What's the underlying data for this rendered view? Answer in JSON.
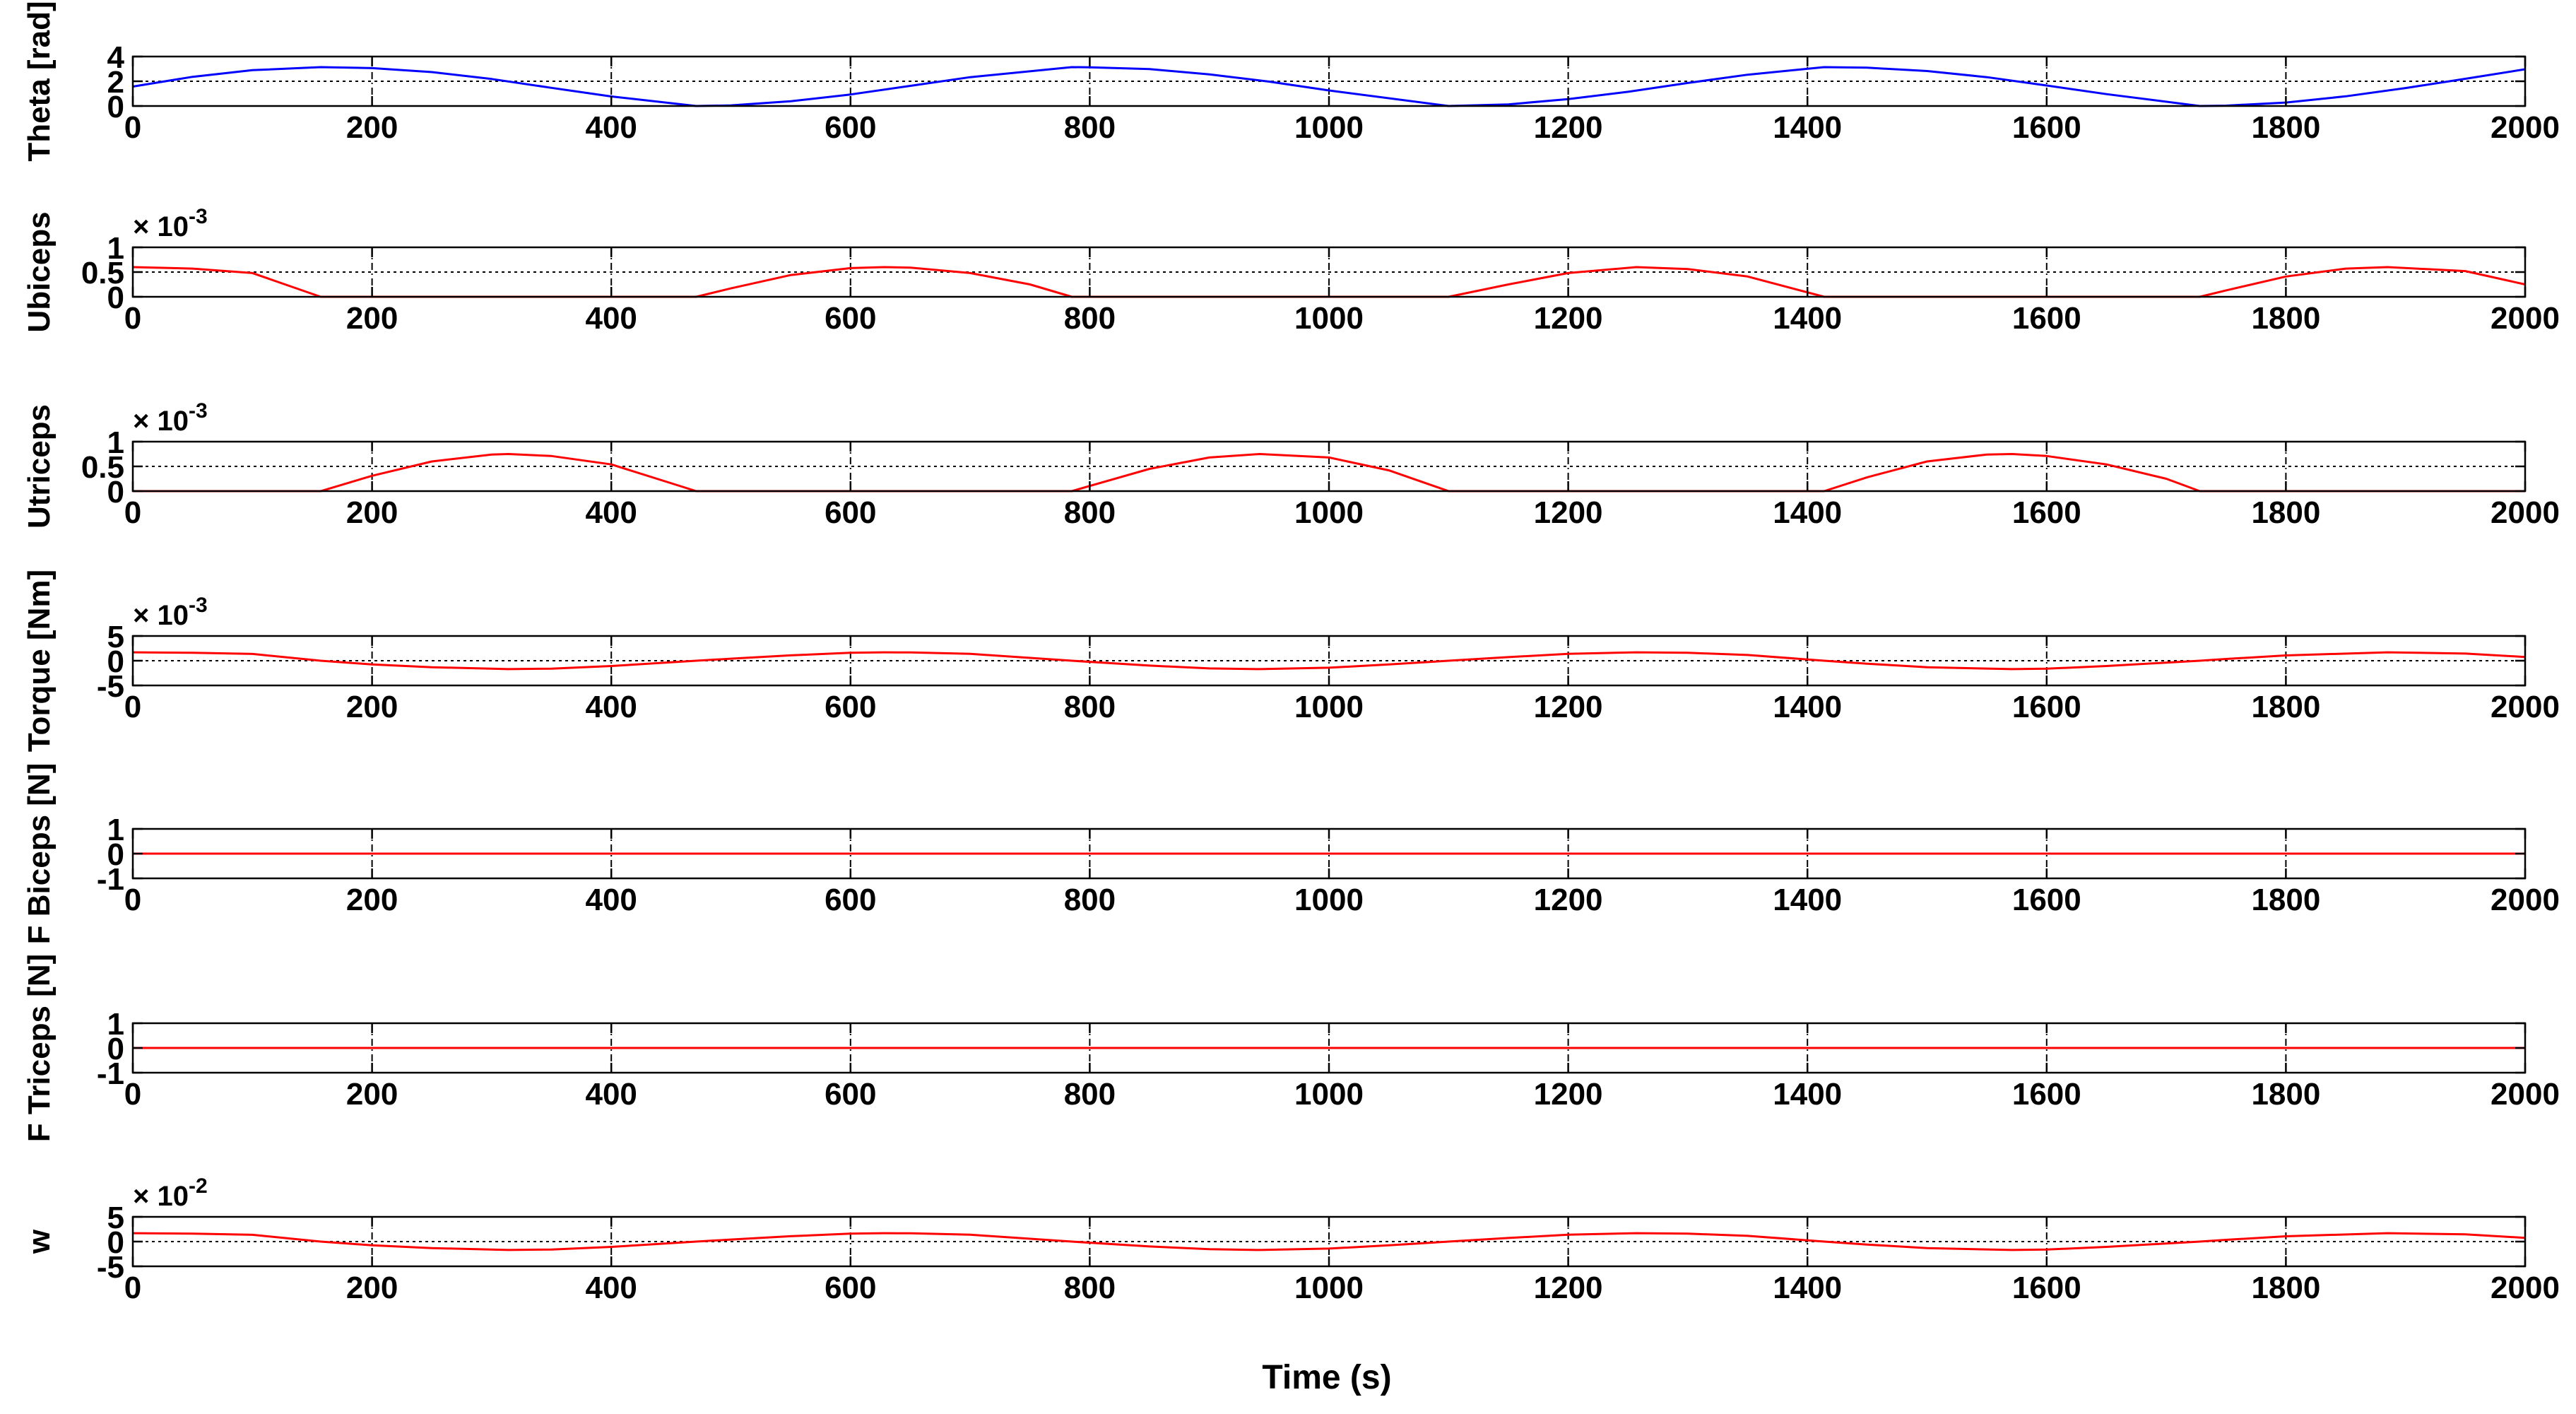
{
  "figure": {
    "xlabel": "Time (s)"
  },
  "style": {
    "axes_color": "#000000",
    "grid_color": "#000000",
    "background": "#ffffff"
  },
  "chart_data": [
    {
      "type": "line",
      "ylabel": "Theta [rad]",
      "xlim": [
        0,
        2000
      ],
      "ylim": [
        0,
        4
      ],
      "xticks": [
        0,
        200,
        400,
        600,
        800,
        1000,
        1200,
        1400,
        1600,
        1800,
        2000
      ],
      "yticks": [
        0,
        2,
        4
      ],
      "exponent_label": "",
      "grid": true,
      "dotted_reference_y": 2,
      "series": [
        {
          "color": "#0000ff",
          "x": [
            0,
            50,
            100,
            157,
            200,
            250,
            300,
            350,
            400,
            471,
            500,
            550,
            600,
            650,
            700,
            785,
            800,
            850,
            900,
            950,
            1000,
            1100,
            1150,
            1200,
            1250,
            1300,
            1350,
            1414,
            1450,
            1500,
            1550,
            1600,
            1650,
            1728,
            1750,
            1800,
            1850,
            1900,
            1950,
            2000
          ],
          "y": [
            1.57,
            2.36,
            2.9,
            3.14,
            3.06,
            2.74,
            2.18,
            1.47,
            0.77,
            0.0,
            0.05,
            0.38,
            0.93,
            1.63,
            2.33,
            3.14,
            3.13,
            2.98,
            2.56,
            1.97,
            1.26,
            0.0,
            0.13,
            0.56,
            1.15,
            1.86,
            2.53,
            3.14,
            3.1,
            2.83,
            2.33,
            1.66,
            0.96,
            0.0,
            0.03,
            0.28,
            0.78,
            1.45,
            2.2,
            2.97
          ]
        }
      ]
    },
    {
      "type": "line",
      "ylabel": "Ubiceps",
      "xlim": [
        0,
        2000
      ],
      "ylim": [
        0,
        1
      ],
      "xticks": [
        0,
        200,
        400,
        600,
        800,
        1000,
        1200,
        1400,
        1600,
        1800,
        2000
      ],
      "yticks": [
        0,
        0.5,
        1
      ],
      "exponent_label": "× 10-3",
      "grid": true,
      "dotted_reference_y": 0.5,
      "series": [
        {
          "color": "#ff0000",
          "x": [
            0,
            50,
            100,
            157,
            471,
            500,
            550,
            600,
            628,
            650,
            700,
            750,
            785,
            1100,
            1150,
            1200,
            1257,
            1300,
            1350,
            1414,
            1728,
            1750,
            1800,
            1850,
            1885,
            1950,
            2000
          ],
          "y": [
            0.6,
            0.57,
            0.48,
            0.0,
            0.0,
            0.17,
            0.44,
            0.58,
            0.6,
            0.59,
            0.48,
            0.25,
            0.0,
            0.0,
            0.25,
            0.48,
            0.6,
            0.56,
            0.41,
            0.0,
            0.0,
            0.13,
            0.41,
            0.57,
            0.6,
            0.52,
            0.25
          ]
        }
      ]
    },
    {
      "type": "line",
      "ylabel": "Utriceps",
      "xlim": [
        0,
        2000
      ],
      "ylim": [
        0,
        1
      ],
      "xticks": [
        0,
        200,
        400,
        600,
        800,
        1000,
        1200,
        1400,
        1600,
        1800,
        2000
      ],
      "yticks": [
        0,
        0.5,
        1
      ],
      "exponent_label": "× 10-3",
      "grid": true,
      "dotted_reference_y": 0.5,
      "series": [
        {
          "color": "#ff0000",
          "x": [
            0,
            157,
            200,
            250,
            300,
            314,
            350,
            400,
            471,
            785,
            850,
            900,
            942,
            1000,
            1050,
            1100,
            1414,
            1450,
            1500,
            1550,
            1571,
            1600,
            1650,
            1700,
            1728,
            2000
          ],
          "y": [
            0.0,
            0.0,
            0.31,
            0.6,
            0.74,
            0.75,
            0.71,
            0.54,
            0.0,
            0.0,
            0.45,
            0.68,
            0.75,
            0.68,
            0.42,
            0.0,
            0.0,
            0.28,
            0.6,
            0.74,
            0.75,
            0.71,
            0.54,
            0.25,
            0.0,
            0.0
          ]
        }
      ]
    },
    {
      "type": "line",
      "ylabel": "Torque [Nm]",
      "xlim": [
        0,
        2000
      ],
      "ylim": [
        -5,
        5
      ],
      "xticks": [
        0,
        200,
        400,
        600,
        800,
        1000,
        1200,
        1400,
        1600,
        1800,
        2000
      ],
      "yticks": [
        -5,
        0,
        5
      ],
      "exponent_label": "× 10-3",
      "grid": true,
      "dotted_reference_y": 0,
      "series": [
        {
          "color": "#ff0000",
          "x": [
            0,
            50,
            100,
            157,
            200,
            250,
            314,
            350,
            400,
            471,
            500,
            550,
            600,
            628,
            650,
            700,
            785,
            850,
            900,
            942,
            1000,
            1050,
            1100,
            1150,
            1200,
            1257,
            1300,
            1350,
            1414,
            1450,
            1500,
            1571,
            1600,
            1650,
            1728,
            1750,
            1800,
            1885,
            1950,
            2000
          ],
          "y": [
            1.7,
            1.62,
            1.37,
            0.0,
            -0.74,
            -1.31,
            -1.7,
            -1.6,
            -1.07,
            0.0,
            0.41,
            1.08,
            1.61,
            1.7,
            1.67,
            1.38,
            0.0,
            -0.99,
            -1.55,
            -1.7,
            -1.41,
            -0.75,
            0.0,
            0.73,
            1.39,
            1.7,
            1.6,
            1.16,
            0.0,
            -0.6,
            -1.31,
            -1.7,
            -1.61,
            -1.07,
            0.0,
            0.36,
            1.07,
            1.7,
            1.45,
            0.76
          ]
        }
      ]
    },
    {
      "type": "line",
      "ylabel": "F Biceps [N]",
      "xlim": [
        0,
        2000
      ],
      "ylim": [
        -1,
        1
      ],
      "xticks": [
        0,
        200,
        400,
        600,
        800,
        1000,
        1200,
        1400,
        1600,
        1800,
        2000
      ],
      "yticks": [
        -1,
        0,
        1
      ],
      "exponent_label": "",
      "grid": true,
      "dotted_reference_y": 0,
      "series": [
        {
          "color": "#ff0000",
          "x": [
            0,
            2000
          ],
          "y": [
            0,
            0
          ]
        }
      ]
    },
    {
      "type": "line",
      "ylabel": "F Triceps [N]",
      "xlim": [
        0,
        2000
      ],
      "ylim": [
        -1,
        1
      ],
      "xticks": [
        0,
        200,
        400,
        600,
        800,
        1000,
        1200,
        1400,
        1600,
        1800,
        2000
      ],
      "yticks": [
        -1,
        0,
        1
      ],
      "exponent_label": "",
      "grid": true,
      "dotted_reference_y": 0,
      "series": [
        {
          "color": "#ff0000",
          "x": [
            0,
            2000
          ],
          "y": [
            0,
            0
          ]
        }
      ]
    },
    {
      "type": "line",
      "ylabel": "w",
      "xlim": [
        0,
        2000
      ],
      "ylim": [
        -5,
        5
      ],
      "xticks": [
        0,
        200,
        400,
        600,
        800,
        1000,
        1200,
        1400,
        1600,
        1800,
        2000
      ],
      "yticks": [
        -5,
        0,
        5
      ],
      "exponent_label": "× 10-2",
      "grid": true,
      "dotted_reference_y": 0,
      "series": [
        {
          "color": "#ff0000",
          "x": [
            0,
            50,
            100,
            157,
            200,
            250,
            314,
            350,
            400,
            471,
            500,
            550,
            600,
            628,
            650,
            700,
            785,
            850,
            900,
            942,
            1000,
            1050,
            1100,
            1150,
            1200,
            1257,
            1300,
            1350,
            1414,
            1450,
            1500,
            1571,
            1600,
            1650,
            1728,
            1750,
            1800,
            1885,
            1950,
            2000
          ],
          "y": [
            1.7,
            1.62,
            1.37,
            0.0,
            -0.74,
            -1.31,
            -1.7,
            -1.6,
            -1.07,
            0.0,
            0.41,
            1.08,
            1.61,
            1.7,
            1.67,
            1.38,
            0.0,
            -0.99,
            -1.55,
            -1.7,
            -1.41,
            -0.75,
            0.0,
            0.73,
            1.39,
            1.7,
            1.6,
            1.16,
            0.0,
            -0.6,
            -1.31,
            -1.7,
            -1.61,
            -1.07,
            0.0,
            0.36,
            1.07,
            1.7,
            1.45,
            0.76
          ]
        }
      ]
    }
  ]
}
